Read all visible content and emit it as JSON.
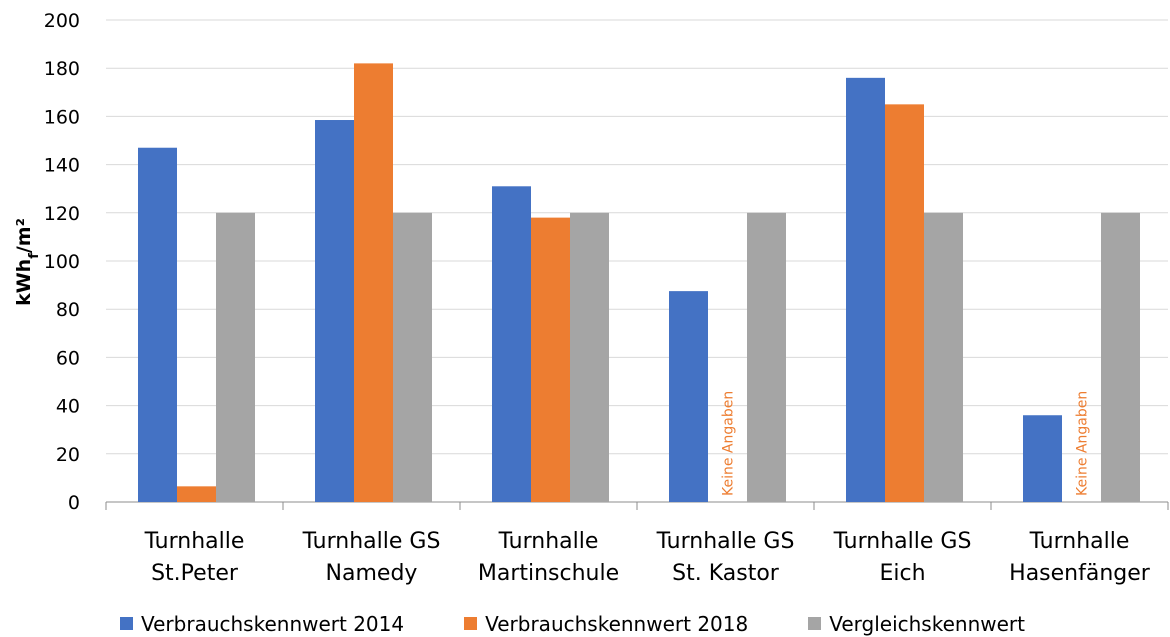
{
  "chart_data": {
    "type": "bar",
    "ylabel_main": "kWh",
    "ylabel_sub": "f",
    "ylabel_tail": "/m²",
    "ylim": [
      0,
      200
    ],
    "yticks": [
      "0",
      "20",
      "40",
      "60",
      "80",
      "100",
      "120",
      "140",
      "160",
      "180",
      "200"
    ],
    "grid": true,
    "legend_position": "bottom",
    "categories": [
      [
        "Turnhalle",
        "St.Peter"
      ],
      [
        "Turnhalle GS",
        "Namedy"
      ],
      [
        "Turnhalle",
        "Martinschule"
      ],
      [
        "Turnhalle GS",
        "St. Kastor"
      ],
      [
        "Turnhalle GS",
        "Eich"
      ],
      [
        "Turnhalle",
        "Hasenfänger"
      ]
    ],
    "series": [
      {
        "name": "Verbrauchskennwert 2014",
        "color": "#4472C4",
        "values": [
          147,
          158.5,
          131,
          87.5,
          176,
          36
        ]
      },
      {
        "name": "Verbrauchskennwert 2018",
        "color": "#ED7D31",
        "values": [
          6.5,
          182,
          118,
          null,
          165,
          null
        ]
      },
      {
        "name": "Vergleichskennwert",
        "color": "#A5A5A5",
        "values": [
          120,
          120,
          120,
          120,
          120,
          120
        ]
      }
    ],
    "missing_label": "Keine Angaben",
    "missing_label_color": "#ED7D31"
  }
}
